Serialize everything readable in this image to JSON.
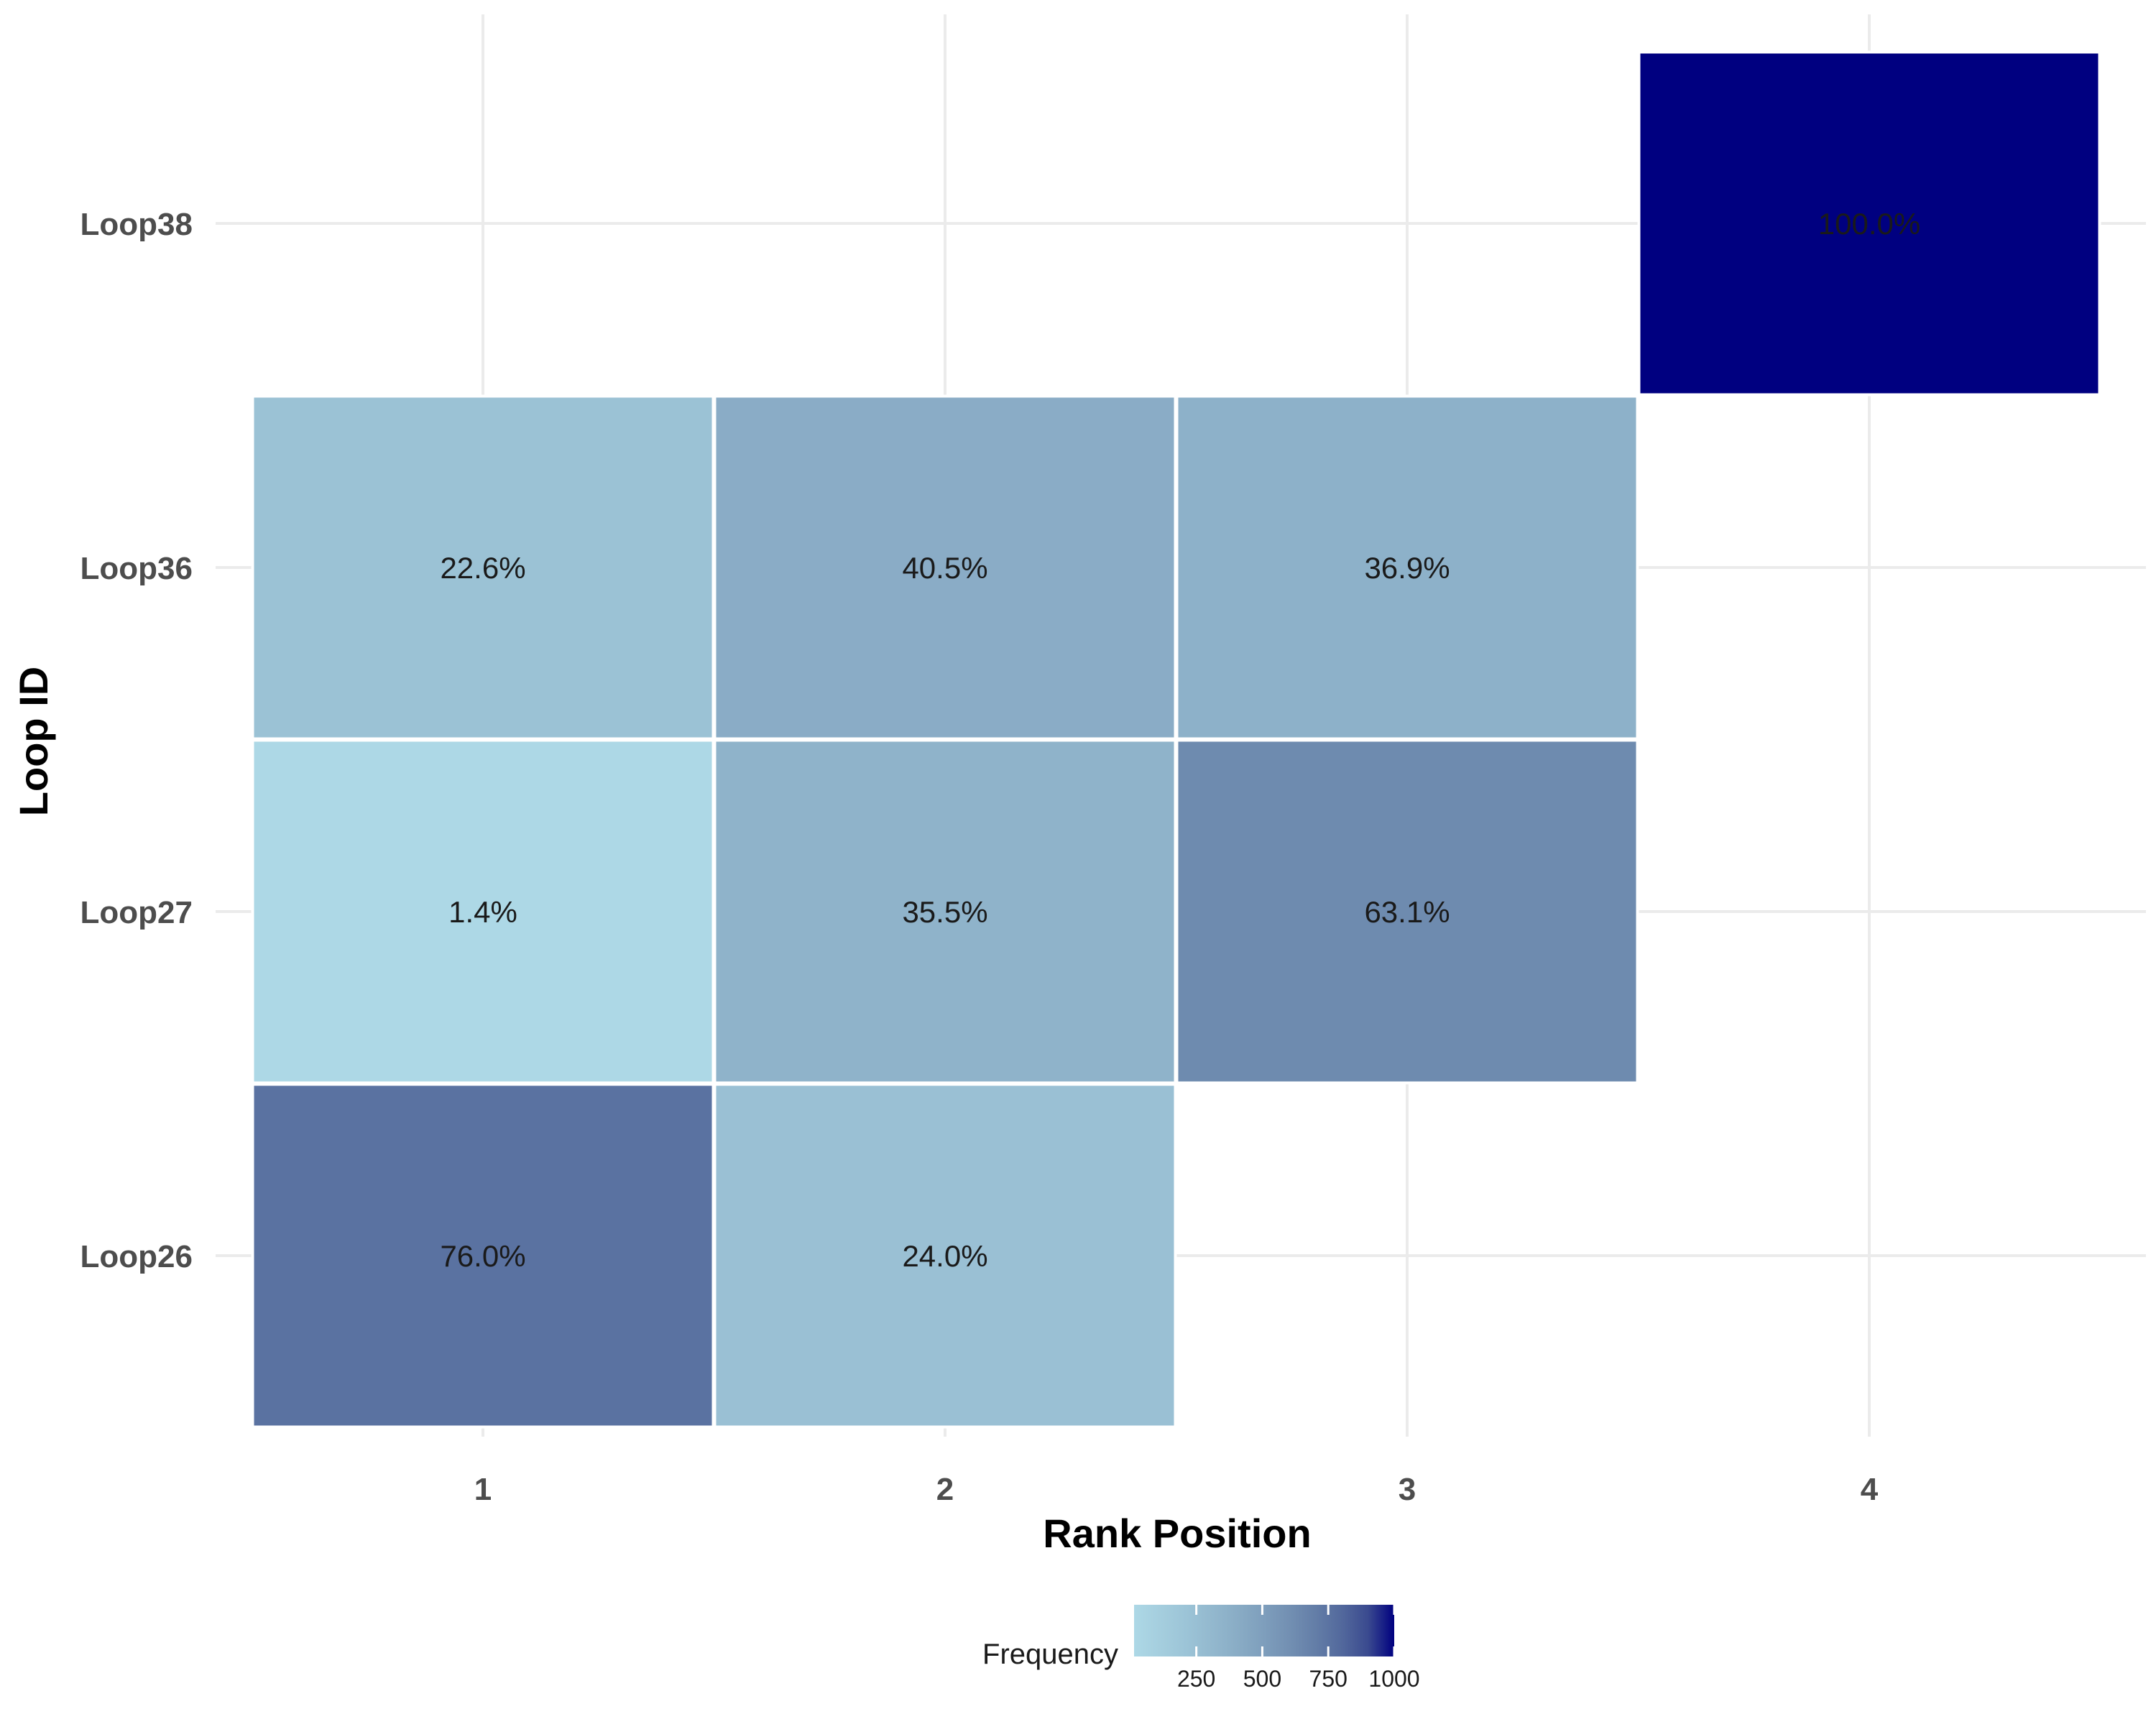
{
  "chart_data": {
    "type": "heatmap",
    "title": "",
    "xlabel": "Rank Position",
    "ylabel": "Loop ID",
    "x_categories": [
      "1",
      "2",
      "3",
      "4"
    ],
    "y_categories": [
      "Loop26",
      "Loop27",
      "Loop36",
      "Loop38"
    ],
    "cells": [
      {
        "loop": "Loop38",
        "rank": 4,
        "frequency": 1000,
        "label": "100.0%"
      },
      {
        "loop": "Loop36",
        "rank": 1,
        "frequency": 226,
        "label": "22.6%"
      },
      {
        "loop": "Loop36",
        "rank": 2,
        "frequency": 405,
        "label": "40.5%"
      },
      {
        "loop": "Loop36",
        "rank": 3,
        "frequency": 369,
        "label": "36.9%"
      },
      {
        "loop": "Loop27",
        "rank": 1,
        "frequency": 14,
        "label": "1.4%"
      },
      {
        "loop": "Loop27",
        "rank": 2,
        "frequency": 355,
        "label": "35.5%"
      },
      {
        "loop": "Loop27",
        "rank": 3,
        "frequency": 631,
        "label": "63.1%"
      },
      {
        "loop": "Loop26",
        "rank": 1,
        "frequency": 760,
        "label": "76.0%"
      },
      {
        "loop": "Loop26",
        "rank": 2,
        "frequency": 240,
        "label": "24.0%"
      }
    ],
    "legend": {
      "title": "Frequency",
      "position": "bottom",
      "range": [
        14,
        1000
      ],
      "ticks": [
        250,
        500,
        750,
        1000
      ],
      "tick_labels": [
        "250",
        "500",
        "750",
        "1000"
      ],
      "low_color": "#add8e6",
      "high_color": "#000080"
    },
    "grid": true
  }
}
